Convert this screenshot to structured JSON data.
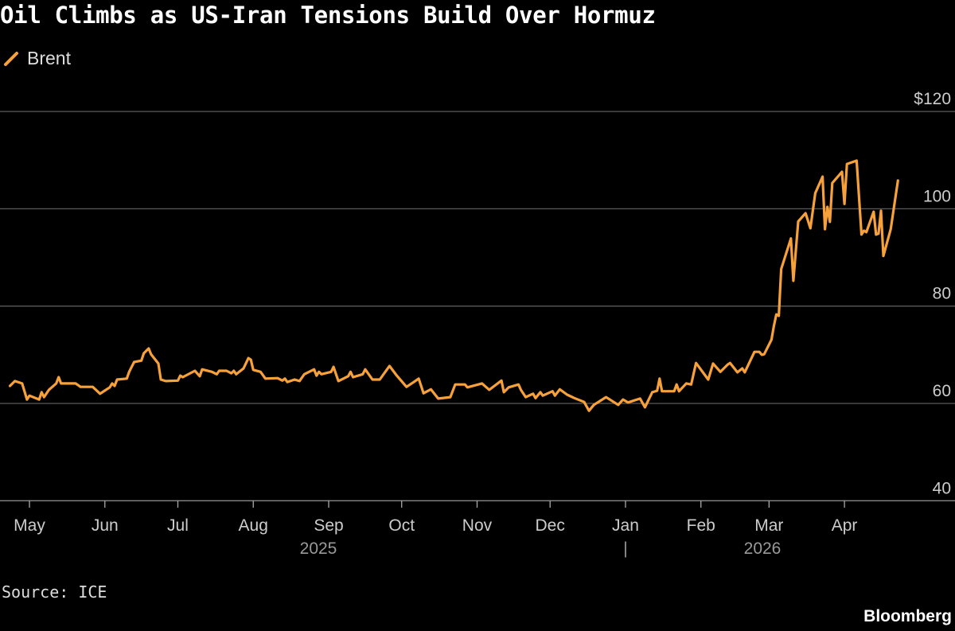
{
  "title": "Oil Climbs as US-Iran Tensions Build Over Hormuz",
  "source": "Source: ICE",
  "brand": "Bloomberg",
  "chart_data": {
    "type": "line",
    "title": "Oil Climbs as US-Iran Tensions Build Over Hormuz",
    "xlabel": "",
    "ylabel": "",
    "ylim": [
      40,
      120
    ],
    "yticks": [
      40,
      60,
      80,
      100,
      120
    ],
    "ytick_labels": [
      "40",
      "60",
      "80",
      "100",
      "$120"
    ],
    "grid": true,
    "legend": "top-left",
    "xticks": [
      {
        "date": "2025-05-01",
        "label": "May"
      },
      {
        "date": "2025-06-01",
        "label": "Jun"
      },
      {
        "date": "2025-07-01",
        "label": "Jul"
      },
      {
        "date": "2025-08-01",
        "label": "Aug"
      },
      {
        "date": "2025-09-01",
        "label": "Sep"
      },
      {
        "date": "2025-10-01",
        "label": "Oct"
      },
      {
        "date": "2025-11-01",
        "label": "Nov"
      },
      {
        "date": "2025-12-01",
        "label": "Dec"
      },
      {
        "date": "2026-01-01",
        "label": "Jan"
      },
      {
        "date": "2026-02-01",
        "label": "Feb"
      },
      {
        "date": "2026-03-01",
        "label": "Mar"
      },
      {
        "date": "2026-04-01",
        "label": "Apr"
      }
    ],
    "year_labels": [
      "2025",
      "2026"
    ],
    "year_separator": "|",
    "series": [
      {
        "name": "Brent",
        "color": "#f7a13b",
        "points": [
          [
            "2025-04-23",
            63.6
          ],
          [
            "2025-04-25",
            64.6
          ],
          [
            "2025-04-28",
            64.1
          ],
          [
            "2025-04-30",
            60.8
          ],
          [
            "2025-05-01",
            61.6
          ],
          [
            "2025-05-05",
            60.8
          ],
          [
            "2025-05-06",
            62.3
          ],
          [
            "2025-05-07",
            61.3
          ],
          [
            "2025-05-09",
            62.8
          ],
          [
            "2025-05-12",
            64.1
          ],
          [
            "2025-05-13",
            65.4
          ],
          [
            "2025-05-14",
            64.1
          ],
          [
            "2025-05-20",
            64.1
          ],
          [
            "2025-05-22",
            63.4
          ],
          [
            "2025-05-27",
            63.4
          ],
          [
            "2025-05-30",
            62.0
          ],
          [
            "2025-06-03",
            63.3
          ],
          [
            "2025-06-04",
            64.1
          ],
          [
            "2025-06-05",
            63.6
          ],
          [
            "2025-06-06",
            64.9
          ],
          [
            "2025-06-10",
            65.1
          ],
          [
            "2025-06-11",
            66.5
          ],
          [
            "2025-06-13",
            68.5
          ],
          [
            "2025-06-16",
            68.8
          ],
          [
            "2025-06-17",
            70.3
          ],
          [
            "2025-06-19",
            71.3
          ],
          [
            "2025-06-20",
            70.1
          ],
          [
            "2025-06-23",
            68.2
          ],
          [
            "2025-06-24",
            64.9
          ],
          [
            "2025-06-26",
            64.6
          ],
          [
            "2025-07-01",
            64.7
          ],
          [
            "2025-07-02",
            65.7
          ],
          [
            "2025-07-03",
            65.4
          ],
          [
            "2025-07-08",
            66.7
          ],
          [
            "2025-07-10",
            65.6
          ],
          [
            "2025-07-11",
            67.0
          ],
          [
            "2025-07-15",
            66.5
          ],
          [
            "2025-07-17",
            66.0
          ],
          [
            "2025-07-18",
            66.7
          ],
          [
            "2025-07-21",
            66.7
          ],
          [
            "2025-07-23",
            66.2
          ],
          [
            "2025-07-24",
            66.7
          ],
          [
            "2025-07-25",
            66.0
          ],
          [
            "2025-07-28",
            67.2
          ],
          [
            "2025-07-30",
            69.3
          ],
          [
            "2025-07-31",
            69.0
          ],
          [
            "2025-08-01",
            66.9
          ],
          [
            "2025-08-04",
            66.5
          ],
          [
            "2025-08-06",
            65.1
          ],
          [
            "2025-08-11",
            65.2
          ],
          [
            "2025-08-13",
            64.7
          ],
          [
            "2025-08-14",
            65.1
          ],
          [
            "2025-08-15",
            64.4
          ],
          [
            "2025-08-18",
            64.9
          ],
          [
            "2025-08-20",
            64.6
          ],
          [
            "2025-08-22",
            66.0
          ],
          [
            "2025-08-26",
            67.0
          ],
          [
            "2025-08-27",
            65.7
          ],
          [
            "2025-08-28",
            66.5
          ],
          [
            "2025-08-29",
            66.0
          ],
          [
            "2025-09-02",
            66.5
          ],
          [
            "2025-09-03",
            67.5
          ],
          [
            "2025-09-05",
            64.6
          ],
          [
            "2025-09-09",
            65.6
          ],
          [
            "2025-09-10",
            66.5
          ],
          [
            "2025-09-11",
            65.4
          ],
          [
            "2025-09-15",
            66.0
          ],
          [
            "2025-09-16",
            67.0
          ],
          [
            "2025-09-19",
            64.9
          ],
          [
            "2025-09-22",
            64.9
          ],
          [
            "2025-09-26",
            67.7
          ],
          [
            "2025-09-29",
            65.7
          ],
          [
            "2025-10-03",
            63.4
          ],
          [
            "2025-10-06",
            64.4
          ],
          [
            "2025-10-08",
            65.1
          ],
          [
            "2025-10-10",
            62.1
          ],
          [
            "2025-10-13",
            62.9
          ],
          [
            "2025-10-16",
            61.0
          ],
          [
            "2025-10-21",
            61.3
          ],
          [
            "2025-10-23",
            63.9
          ],
          [
            "2025-10-27",
            63.9
          ],
          [
            "2025-10-28",
            63.3
          ],
          [
            "2025-11-03",
            64.1
          ],
          [
            "2025-11-06",
            62.8
          ],
          [
            "2025-11-11",
            64.7
          ],
          [
            "2025-11-12",
            62.3
          ],
          [
            "2025-11-14",
            63.3
          ],
          [
            "2025-11-18",
            63.9
          ],
          [
            "2025-11-19",
            62.8
          ],
          [
            "2025-11-21",
            61.3
          ],
          [
            "2025-11-24",
            62.0
          ],
          [
            "2025-11-25",
            61.1
          ],
          [
            "2025-11-27",
            62.3
          ],
          [
            "2025-11-28",
            61.6
          ],
          [
            "2025-12-02",
            62.5
          ],
          [
            "2025-12-03",
            61.6
          ],
          [
            "2025-12-05",
            62.9
          ],
          [
            "2025-12-08",
            61.8
          ],
          [
            "2025-12-11",
            61.1
          ],
          [
            "2025-12-15",
            60.3
          ],
          [
            "2025-12-17",
            58.5
          ],
          [
            "2025-12-19",
            59.7
          ],
          [
            "2025-12-24",
            61.3
          ],
          [
            "2025-12-29",
            59.7
          ],
          [
            "2025-12-31",
            60.8
          ],
          [
            "2026-01-02",
            60.2
          ],
          [
            "2026-01-07",
            61.0
          ],
          [
            "2026-01-09",
            59.2
          ],
          [
            "2026-01-12",
            62.3
          ],
          [
            "2026-01-14",
            62.6
          ],
          [
            "2026-01-15",
            65.1
          ],
          [
            "2026-01-16",
            62.5
          ],
          [
            "2026-01-21",
            62.5
          ],
          [
            "2026-01-22",
            63.9
          ],
          [
            "2026-01-23",
            62.5
          ],
          [
            "2026-01-26",
            64.1
          ],
          [
            "2026-01-28",
            63.9
          ],
          [
            "2026-01-30",
            68.3
          ],
          [
            "2026-02-04",
            64.9
          ],
          [
            "2026-02-06",
            68.2
          ],
          [
            "2026-02-09",
            66.5
          ],
          [
            "2026-02-12",
            68.0
          ],
          [
            "2026-02-13",
            68.3
          ],
          [
            "2026-02-16",
            66.4
          ],
          [
            "2026-02-18",
            67.2
          ],
          [
            "2026-02-19",
            66.4
          ],
          [
            "2026-02-23",
            70.6
          ],
          [
            "2026-02-25",
            70.6
          ],
          [
            "2026-02-26",
            70.0
          ],
          [
            "2026-02-27",
            70.1
          ],
          [
            "2026-03-02",
            73.1
          ],
          [
            "2026-03-03",
            75.9
          ],
          [
            "2026-03-04",
            78.3
          ],
          [
            "2026-03-05",
            78.0
          ],
          [
            "2026-03-06",
            87.6
          ],
          [
            "2026-03-10",
            93.9
          ],
          [
            "2026-03-11",
            85.2
          ],
          [
            "2026-03-13",
            97.4
          ],
          [
            "2026-03-16",
            99.1
          ],
          [
            "2026-03-18",
            96.0
          ],
          [
            "2026-03-20",
            103.2
          ],
          [
            "2026-03-23",
            106.6
          ],
          [
            "2026-03-24",
            95.8
          ],
          [
            "2026-03-25",
            100.4
          ],
          [
            "2026-03-26",
            97.3
          ],
          [
            "2026-03-27",
            105.3
          ],
          [
            "2026-03-31",
            107.6
          ],
          [
            "2026-04-01",
            101.0
          ],
          [
            "2026-04-02",
            109.2
          ],
          [
            "2026-04-06",
            109.9
          ],
          [
            "2026-04-08",
            94.7
          ],
          [
            "2026-04-09",
            95.5
          ],
          [
            "2026-04-10",
            95.2
          ],
          [
            "2026-04-13",
            99.4
          ],
          [
            "2026-04-14",
            94.7
          ],
          [
            "2026-04-15",
            94.9
          ],
          [
            "2026-04-16",
            99.6
          ],
          [
            "2026-04-17",
            90.3
          ],
          [
            "2026-04-20",
            95.8
          ],
          [
            "2026-04-23",
            105.8
          ]
        ]
      }
    ]
  }
}
